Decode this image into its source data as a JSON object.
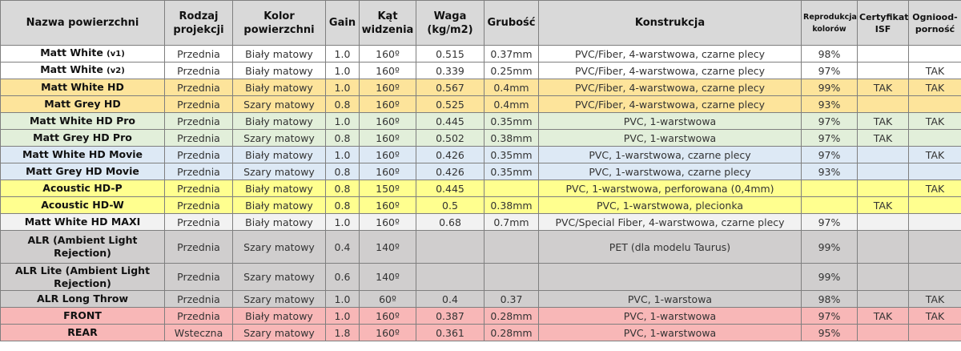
{
  "headers": [
    "Nazwa powierzchni",
    "Rodzaj projekcji",
    "Kolor powierzchni",
    "Gain",
    "Kąt widzenia",
    "Waga (kg/m2)",
    "Grubość",
    "Konstrukcja",
    "Reprodukcja kolorów",
    "Certyfikat ISF",
    "Ogniood-porność"
  ],
  "row_colors": {
    "white": "#ffffff",
    "orange": "#fde49b",
    "green": "#e2efda",
    "blue": "#dde9f5",
    "yellow": "#ffff8f",
    "lightgrey": "#f2f2f2",
    "grey": "#d0cece",
    "pink": "#f8b7b7"
  },
  "rows": [
    {
      "name": "Matt White",
      "suffix": "(v1)",
      "color": "white",
      "cells": [
        "Przednia",
        "Biały matowy",
        "1.0",
        "160º",
        "0.515",
        "0.37mm",
        "PVC/Fiber, 4-warstwowa, czarne plecy",
        "98%",
        "",
        ""
      ]
    },
    {
      "name": "Matt White",
      "suffix": "(v2)",
      "color": "white",
      "cells": [
        "Przednia",
        "Biały matowy",
        "1.0",
        "160º",
        "0.339",
        "0.25mm",
        "PVC/Fiber, 4-warstwowa, czarne plecy",
        "97%",
        "",
        "TAK"
      ]
    },
    {
      "name": "Matt White HD",
      "suffix": "",
      "color": "orange",
      "cells": [
        "Przednia",
        "Biały matowy",
        "1.0",
        "160º",
        "0.567",
        "0.4mm",
        "PVC/Fiber, 4-warstwowa, czarne plecy",
        "99%",
        "TAK",
        "TAK"
      ]
    },
    {
      "name": "Matt Grey HD",
      "suffix": "",
      "color": "orange",
      "cells": [
        "Przednia",
        "Szary matowy",
        "0.8",
        "160º",
        "0.525",
        "0.4mm",
        "PVC/Fiber, 4-warstwowa, czarne plecy",
        "93%",
        "",
        ""
      ]
    },
    {
      "name": "Matt White HD Pro",
      "suffix": "",
      "color": "green",
      "cells": [
        "Przednia",
        "Biały matowy",
        "1.0",
        "160º",
        "0.445",
        "0.35mm",
        "PVC, 1-warstwowa",
        "97%",
        "TAK",
        "TAK"
      ]
    },
    {
      "name": "Matt Grey HD Pro",
      "suffix": "",
      "color": "green",
      "cells": [
        "Przednia",
        "Szary matowy",
        "0.8",
        "160º",
        "0.502",
        "0.38mm",
        "PVC, 1-warstwowa",
        "97%",
        "TAK",
        ""
      ]
    },
    {
      "name": "Matt White HD Movie",
      "suffix": "",
      "color": "blue",
      "cells": [
        "Przednia",
        "Biały matowy",
        "1.0",
        "160º",
        "0.426",
        "0.35mm",
        "PVC, 1-warstwowa, czarne plecy",
        "97%",
        "",
        "TAK"
      ]
    },
    {
      "name": "Matt Grey HD Movie",
      "suffix": "",
      "color": "blue",
      "cells": [
        "Przednia",
        "Szary matowy",
        "0.8",
        "160º",
        "0.426",
        "0.35mm",
        "PVC, 1-warstwowa, czarne plecy",
        "93%",
        "",
        ""
      ]
    },
    {
      "name": "Acoustic HD-P",
      "suffix": "",
      "color": "yellow",
      "cells": [
        "Przednia",
        "Biały matowy",
        "0.8",
        "150º",
        "0.445",
        "",
        "PVC, 1-warstwowa, perforowana (0,4mm)",
        "",
        "",
        "TAK"
      ]
    },
    {
      "name": "Acoustic HD-W",
      "suffix": "",
      "color": "yellow",
      "cells": [
        "Przednia",
        "Biały matowy",
        "0.8",
        "160º",
        "0.5",
        "0.38mm",
        "PVC, 1-warstwowa, plecionka",
        "",
        "TAK",
        ""
      ]
    },
    {
      "name": "Matt White HD MAXI",
      "suffix": "",
      "color": "lightgrey",
      "cells": [
        "Przednia",
        "Biały matowy",
        "1.0",
        "160º",
        "0.68",
        "0.7mm",
        "PVC/Special Fiber, 4-warstwowa, czarne plecy",
        "97%",
        "",
        ""
      ]
    },
    {
      "name": "ALR (Ambient Light Rejection)",
      "suffix": "",
      "color": "grey",
      "h": "tall",
      "cells": [
        "Przednia",
        "Szary matowy",
        "0.4",
        "140º",
        "",
        "",
        "PET (dla modelu Taurus)",
        "99%",
        "",
        ""
      ]
    },
    {
      "name": "ALR Lite (Ambient Light Rejection)",
      "suffix": "",
      "color": "grey",
      "h": "tall2",
      "cells": [
        "Przednia",
        "Szary matowy",
        "0.6",
        "140º",
        "",
        "",
        "",
        "99%",
        "",
        ""
      ]
    },
    {
      "name": "ALR Long Throw",
      "suffix": "",
      "color": "grey",
      "cells": [
        "Przednia",
        "Szary matowy",
        "1.0",
        "60º",
        "0.4",
        "0.37",
        "PVC, 1-warstowa",
        "98%",
        "",
        "TAK"
      ]
    },
    {
      "name": "FRONT",
      "suffix": "",
      "color": "pink",
      "cells": [
        "Przednia",
        "Biały matowy",
        "1.0",
        "160º",
        "0.387",
        "0.28mm",
        "PVC, 1-warstwowa",
        "97%",
        "TAK",
        "TAK"
      ]
    },
    {
      "name": "REAR",
      "suffix": "",
      "color": "pink",
      "cells": [
        "Wsteczna",
        "Szary matowy",
        "1.8",
        "160º",
        "0.361",
        "0.28mm",
        "PVC, 1-warstwowa",
        "95%",
        "",
        ""
      ]
    }
  ]
}
